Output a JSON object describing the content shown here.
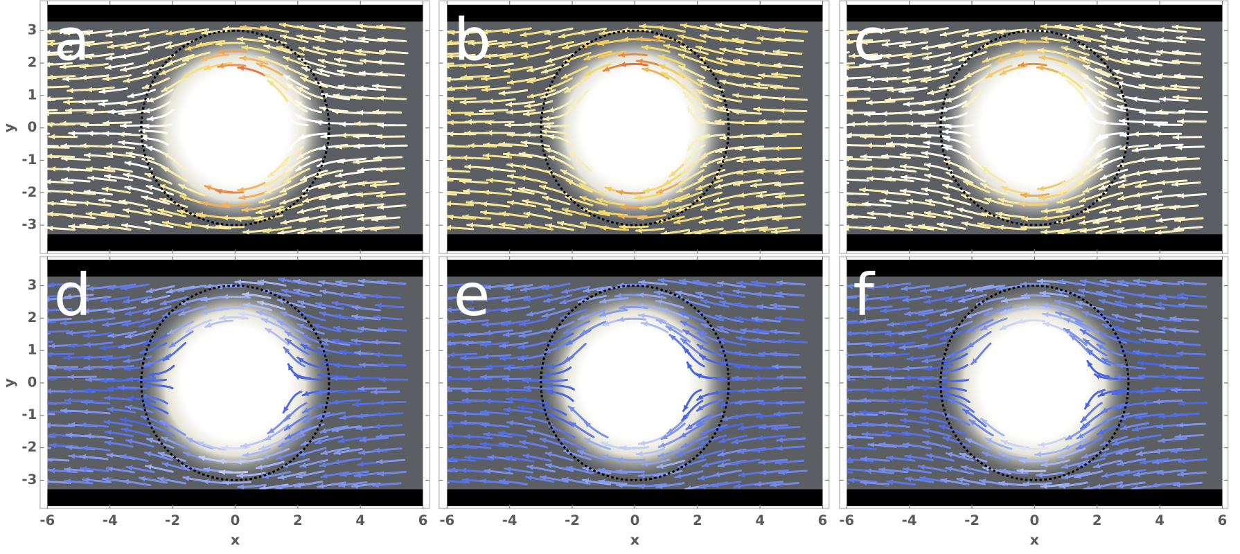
{
  "chart_data": [
    {
      "type": "streamplot",
      "panel_label": "a",
      "ylabel": "y",
      "xlim": [
        -6,
        6
      ],
      "ylim": [
        -3.8,
        3.8
      ],
      "xticks": [
        -6,
        -4,
        -2,
        0,
        2,
        4,
        6
      ],
      "yticks": [
        -3,
        -2,
        -1,
        0,
        1,
        2,
        3
      ],
      "colormap": [
        "#ffffff",
        "#f5e07a",
        "#e0452a"
      ]
    },
    {
      "type": "streamplot",
      "panel_label": "b",
      "xlim": [
        -6,
        6
      ],
      "ylim": [
        -3.8,
        3.8
      ],
      "xticks": [
        -6,
        -4,
        -2,
        0,
        2,
        4,
        6
      ],
      "yticks": [
        -3,
        -2,
        -1,
        0,
        1,
        2,
        3
      ],
      "colormap": [
        "#f7f1c0",
        "#f2d868",
        "#d9482a"
      ]
    },
    {
      "type": "streamplot",
      "panel_label": "c",
      "xlim": [
        -6,
        6
      ],
      "ylim": [
        -3.8,
        3.8
      ],
      "xticks": [
        -6,
        -4,
        -2,
        0,
        2,
        4,
        6
      ],
      "yticks": [
        -3,
        -2,
        -1,
        0,
        1,
        2,
        3
      ],
      "colormap": [
        "#ffffff",
        "#f6e58a",
        "#e0772a"
      ]
    },
    {
      "type": "streamplot",
      "panel_label": "d",
      "xlabel": "x",
      "ylabel": "y",
      "xlim": [
        -6,
        6
      ],
      "ylim": [
        -3.8,
        3.8
      ],
      "xticks": [
        -6,
        -4,
        -2,
        0,
        2,
        4,
        6
      ],
      "yticks": [
        -3,
        -2,
        -1,
        0,
        1,
        2,
        3
      ],
      "colormap": [
        "#4a66e0",
        "#a9b7f0",
        "#ffffff"
      ]
    },
    {
      "type": "streamplot",
      "panel_label": "e",
      "xlabel": "x",
      "xlim": [
        -6,
        6
      ],
      "ylim": [
        -3.8,
        3.8
      ],
      "xticks": [
        -6,
        -4,
        -2,
        0,
        2,
        4,
        6
      ],
      "yticks": [
        -3,
        -2,
        -1,
        0,
        1,
        2,
        3
      ],
      "colormap": [
        "#4a66e0",
        "#8fa2ec",
        "#ffffff"
      ]
    },
    {
      "type": "streamplot",
      "panel_label": "f",
      "xlabel": "x",
      "xlim": [
        -6,
        6
      ],
      "ylim": [
        -3.8,
        3.8
      ],
      "xticks": [
        -6,
        -4,
        -2,
        0,
        2,
        4,
        6
      ],
      "yticks": [
        -3,
        -2,
        -1,
        0,
        1,
        2,
        3
      ],
      "colormap": [
        "#4a66e0",
        "#9aacee",
        "#ffffff"
      ]
    }
  ]
}
